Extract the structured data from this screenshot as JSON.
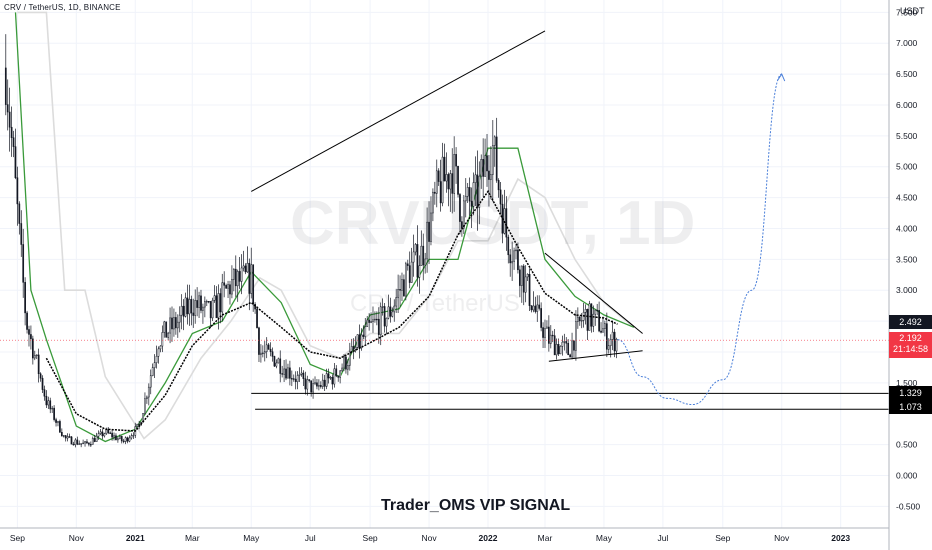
{
  "header": {
    "symbol_line": "CRV / TetherUS, 1D, BINANCE"
  },
  "watermark": {
    "symbol": "CRVUSDT, 1D",
    "name": "CRV / TetherUS"
  },
  "caption": "Trader_OMS VIP SIGNAL",
  "axis": {
    "unit": "USDT",
    "y_ticks": [
      "7.500",
      "7.000",
      "6.500",
      "6.000",
      "5.500",
      "5.000",
      "4.500",
      "4.000",
      "3.500",
      "3.000",
      "2.500",
      "2.000",
      "1.500",
      "0.500",
      "0.000",
      "-0.500"
    ],
    "x_ticks": [
      "Sep",
      "Nov",
      "2021",
      "Mar",
      "May",
      "Jul",
      "Sep",
      "Nov",
      "2022",
      "Mar",
      "May",
      "Jul",
      "Sep",
      "Nov",
      "2023"
    ]
  },
  "badges": {
    "last_price": "2.492",
    "current_price": "2.192",
    "countdown": "21:14:58",
    "level1": "1.329",
    "level2": "1.073"
  },
  "colors": {
    "candle": "#131722",
    "moving_average": "#000000",
    "green_band": "#3a9a3a",
    "white_band": "#dcdcdc",
    "projection": "#4a7fd9",
    "current_price_line": "#f23645",
    "grid": "#f0f3fa"
  },
  "chart_data": {
    "type": "line",
    "title": "CRV / TetherUS, 1D, BINANCE",
    "ylabel": "USDT",
    "ylim": [
      -0.85,
      7.7
    ],
    "xlim": [
      "2020-08-14",
      "2023-02-20"
    ],
    "grid": true,
    "series": [
      {
        "style": "candlestick",
        "x": [
          "2020-08-20",
          "2020-09-10",
          "2020-10-01",
          "2020-10-20",
          "2020-11-10",
          "2020-12-01",
          "2020-12-20",
          "2021-01-05",
          "2021-01-25",
          "2021-02-15",
          "2021-03-01",
          "2021-03-20",
          "2021-04-10",
          "2021-05-01",
          "2021-05-10",
          "2021-05-25",
          "2021-06-15",
          "2021-07-05",
          "2021-07-25",
          "2021-08-15",
          "2021-09-01",
          "2021-09-20",
          "2021-10-10",
          "2021-10-25",
          "2021-11-10",
          "2021-11-25",
          "2021-12-05",
          "2021-12-20",
          "2022-01-05",
          "2022-01-20",
          "2022-02-05",
          "2022-02-20",
          "2022-03-05",
          "2022-03-25",
          "2022-04-10",
          "2022-04-25",
          "2022-05-05",
          "2022-05-15"
        ],
        "values": [
          6.6,
          2.5,
          1.2,
          0.6,
          0.5,
          0.7,
          0.55,
          0.8,
          2.2,
          2.5,
          2.8,
          2.6,
          3.1,
          3.2,
          2.0,
          1.9,
          1.6,
          1.4,
          1.6,
          2.0,
          2.4,
          2.6,
          3.3,
          3.6,
          4.6,
          5.0,
          4.3,
          4.5,
          5.4,
          3.9,
          3.3,
          2.6,
          2.2,
          2.0,
          2.6,
          2.5,
          2.2,
          2.19
        ]
      },
      {
        "style": "moving-average",
        "x": [
          "2020-10-01",
          "2020-11-01",
          "2020-12-01",
          "2021-01-01",
          "2021-02-01",
          "2021-03-01",
          "2021-04-01",
          "2021-05-01",
          "2021-06-01",
          "2021-07-01",
          "2021-08-01",
          "2021-09-01",
          "2021-10-01",
          "2021-11-01",
          "2021-12-01",
          "2022-01-01",
          "2022-02-01",
          "2022-03-01",
          "2022-04-01",
          "2022-05-01",
          "2022-05-15"
        ],
        "values": [
          1.9,
          1.0,
          0.75,
          0.72,
          1.3,
          2.1,
          2.6,
          2.8,
          2.4,
          2.0,
          1.9,
          2.15,
          2.4,
          2.9,
          3.9,
          4.6,
          3.7,
          2.95,
          2.6,
          2.55,
          2.45
        ]
      },
      {
        "style": "green-band",
        "x": [
          "2020-08-30",
          "2020-09-15",
          "2020-10-01",
          "2020-11-01",
          "2020-12-01",
          "2021-01-01",
          "2021-02-01",
          "2021-03-01",
          "2021-04-01",
          "2021-05-01",
          "2021-06-01",
          "2021-07-01",
          "2021-08-01",
          "2021-09-01",
          "2021-10-01",
          "2021-11-01",
          "2021-12-01",
          "2022-01-01",
          "2022-02-01",
          "2022-03-01",
          "2022-04-01",
          "2022-05-01",
          "2022-06-01"
        ],
        "values": [
          7.5,
          3.0,
          2.2,
          0.8,
          0.55,
          0.75,
          1.5,
          2.3,
          2.5,
          3.3,
          2.8,
          1.8,
          1.6,
          2.6,
          2.7,
          3.5,
          3.5,
          5.3,
          5.3,
          3.5,
          2.9,
          2.6,
          2.4
        ]
      },
      {
        "style": "white-band",
        "x": [
          "2020-09-01",
          "2020-10-01",
          "2020-10-20",
          "2020-11-10",
          "2020-12-01",
          "2021-01-10",
          "2021-02-01",
          "2021-03-10",
          "2021-04-10",
          "2021-05-10",
          "2021-06-01",
          "2021-07-01",
          "2021-08-01",
          "2021-09-01",
          "2021-10-01",
          "2021-11-01",
          "2021-12-01",
          "2022-01-01",
          "2022-02-01",
          "2022-03-01",
          "2022-04-01",
          "2022-05-01",
          "2022-06-01"
        ],
        "values": [
          7.5,
          7.5,
          3.0,
          3.0,
          1.6,
          0.6,
          0.9,
          1.9,
          2.5,
          3.2,
          3.0,
          2.1,
          1.9,
          2.3,
          2.3,
          2.9,
          3.8,
          3.8,
          4.8,
          4.5,
          3.5,
          2.8,
          2.4
        ]
      },
      {
        "style": "projection-dashed",
        "x": [
          "2022-05-15",
          "2022-06-10",
          "2022-07-05",
          "2022-08-01",
          "2022-09-01",
          "2022-10-01",
          "2022-11-01"
        ],
        "values": [
          2.2,
          1.6,
          1.25,
          1.15,
          1.55,
          3.0,
          6.5
        ]
      }
    ],
    "trendlines": [
      {
        "from": [
          "2021-05-01",
          4.6
        ],
        "to": [
          "2022-03-01",
          7.2
        ]
      },
      {
        "from": [
          "2022-03-01",
          3.6
        ],
        "to": [
          "2022-06-10",
          2.3
        ]
      },
      {
        "from": [
          "2022-03-05",
          1.85
        ],
        "to": [
          "2022-06-10",
          2.02
        ]
      }
    ],
    "horizontal_levels": [
      1.329,
      1.073
    ],
    "current_price": 2.192
  }
}
